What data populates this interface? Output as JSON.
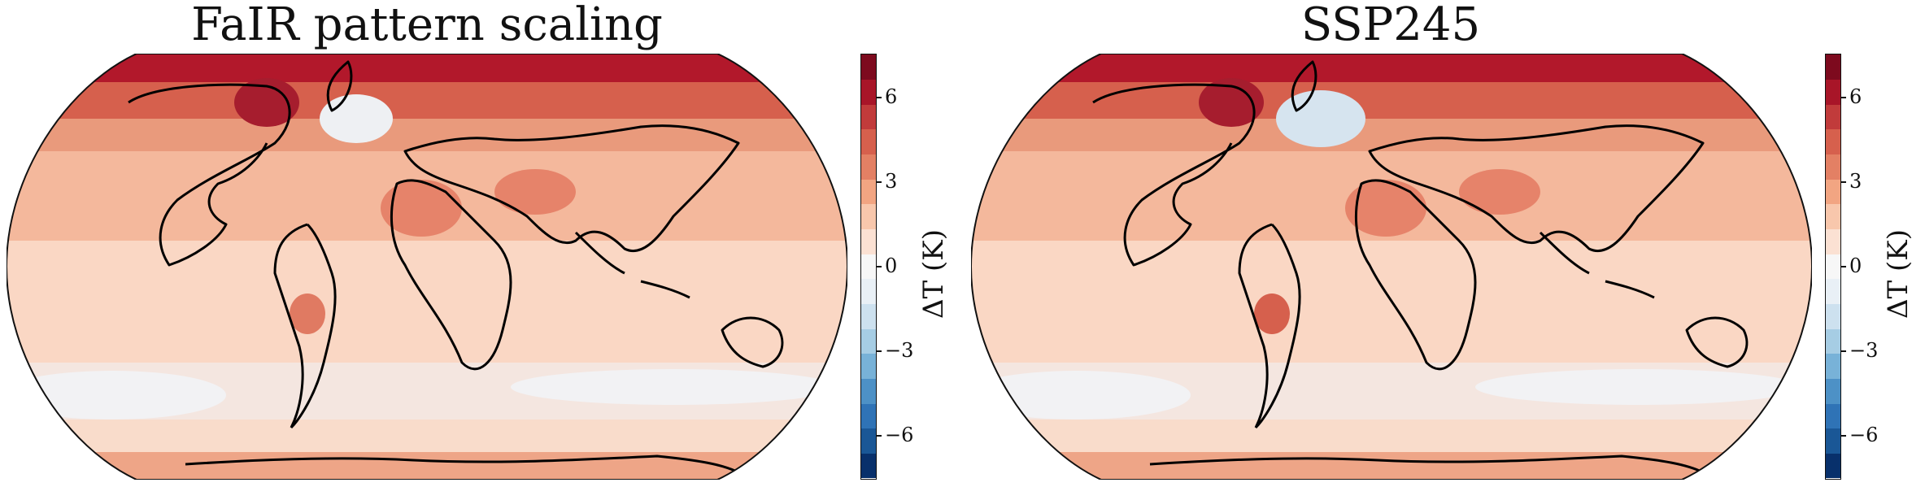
{
  "panels": [
    {
      "title": "FaIR pattern scaling",
      "colorbar_label": "ΔT (K)"
    },
    {
      "title": "SSP245",
      "colorbar_label": "ΔT (K)"
    }
  ],
  "colorbar": {
    "range": [
      -7.5,
      7.5
    ],
    "ticks": [
      {
        "value": 6,
        "label": "6"
      },
      {
        "value": 3,
        "label": "3"
      },
      {
        "value": 0,
        "label": "0"
      },
      {
        "value": -3,
        "label": "−3"
      },
      {
        "value": -6,
        "label": "−6"
      }
    ],
    "colors": [
      "#08306b",
      "#1a5796",
      "#2f73b6",
      "#4d91c6",
      "#78b2d8",
      "#a6cde4",
      "#cde1ef",
      "#e9f0f6",
      "#f7f7f7",
      "#fbe1d3",
      "#f8c7ac",
      "#f2a582",
      "#e38064",
      "#d6604d",
      "#c13b3b",
      "#a81528",
      "#7d0a1e"
    ]
  },
  "projection": "Robinson"
}
